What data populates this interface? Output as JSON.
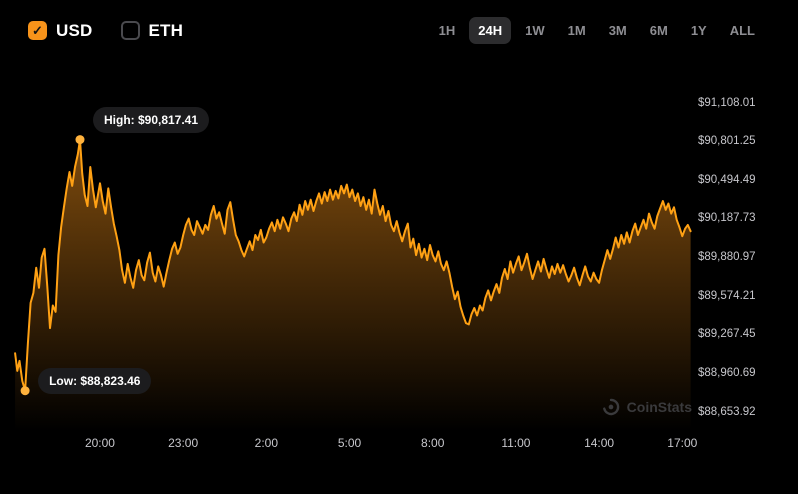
{
  "toggles": {
    "usd": {
      "label": "USD",
      "checked": true,
      "check_glyph": "✓"
    },
    "eth": {
      "label": "ETH",
      "checked": false
    }
  },
  "ranges": {
    "items": [
      "1H",
      "24H",
      "1W",
      "1M",
      "3M",
      "6M",
      "1Y",
      "ALL"
    ],
    "active": "24H"
  },
  "watermark": {
    "text": "CoinStats"
  },
  "colors": {
    "panel_bg": "#000000",
    "accent": "#f7931a",
    "line": "#ffa114",
    "dot": "#ffb23d",
    "fill_top": "rgba(247,147,26,0.58)",
    "fill_bottom": "rgba(247,147,26,0)",
    "badge_bg": "#1c1c1e",
    "active_range_bg": "#2c2c2e",
    "axis_text": "#c7c7cc",
    "muted_text": "#8e8e93"
  },
  "chart_data": {
    "type": "area",
    "legend": "none",
    "grid": false,
    "y_ticks": [
      {
        "label": "$91,108.01",
        "value": 91108.01
      },
      {
        "label": "$90,801.25",
        "value": 90801.25
      },
      {
        "label": "$90,494.49",
        "value": 90494.49
      },
      {
        "label": "$90,187.73",
        "value": 90187.73
      },
      {
        "label": "$89,880.97",
        "value": 89880.97
      },
      {
        "label": "$89,574.21",
        "value": 89574.21
      },
      {
        "label": "$89,267.45",
        "value": 89267.45
      },
      {
        "label": "$88,960.69",
        "value": 88960.69
      },
      {
        "label": "$88,653.92",
        "value": 88653.92
      }
    ],
    "x_ticks": [
      {
        "label": "20:00",
        "hour": 20
      },
      {
        "label": "23:00",
        "hour": 23
      },
      {
        "label": "2:00",
        "hour": 26
      },
      {
        "label": "5:00",
        "hour": 29
      },
      {
        "label": "8:00",
        "hour": 32
      },
      {
        "label": "11:00",
        "hour": 35
      },
      {
        "label": "14:00",
        "hour": 38
      },
      {
        "label": "17:00",
        "hour": 41
      }
    ],
    "time_domain": [
      16.9,
      41.35
    ],
    "high": {
      "label": "High: $90,817.41",
      "value": 90817.41,
      "hour": 19.28
    },
    "low": {
      "label": "Low: $88,823.46",
      "value": 88823.46,
      "hour": 17.3
    },
    "points": [
      [
        16.94,
        89120
      ],
      [
        17.02,
        88980
      ],
      [
        17.1,
        89060
      ],
      [
        17.2,
        88900
      ],
      [
        17.3,
        88823.46
      ],
      [
        17.4,
        89200
      ],
      [
        17.5,
        89520
      ],
      [
        17.6,
        89600
      ],
      [
        17.7,
        89800
      ],
      [
        17.8,
        89640
      ],
      [
        17.9,
        89880
      ],
      [
        18.0,
        89950
      ],
      [
        18.1,
        89650
      ],
      [
        18.2,
        89320
      ],
      [
        18.3,
        89500
      ],
      [
        18.4,
        89450
      ],
      [
        18.5,
        89900
      ],
      [
        18.6,
        90120
      ],
      [
        18.7,
        90280
      ],
      [
        18.8,
        90430
      ],
      [
        18.9,
        90560
      ],
      [
        19.0,
        90450
      ],
      [
        19.1,
        90600
      ],
      [
        19.2,
        90700
      ],
      [
        19.28,
        90817.41
      ],
      [
        19.36,
        90550
      ],
      [
        19.45,
        90380
      ],
      [
        19.55,
        90290
      ],
      [
        19.65,
        90600
      ],
      [
        19.75,
        90420
      ],
      [
        19.85,
        90280
      ],
      [
        20.0,
        90470
      ],
      [
        20.1,
        90330
      ],
      [
        20.2,
        90230
      ],
      [
        20.3,
        90430
      ],
      [
        20.4,
        90280
      ],
      [
        20.5,
        90150
      ],
      [
        20.6,
        90050
      ],
      [
        20.7,
        89940
      ],
      [
        20.8,
        89780
      ],
      [
        20.9,
        89680
      ],
      [
        21.0,
        89830
      ],
      [
        21.1,
        89720
      ],
      [
        21.2,
        89640
      ],
      [
        21.3,
        89780
      ],
      [
        21.4,
        89860
      ],
      [
        21.5,
        89740
      ],
      [
        21.6,
        89700
      ],
      [
        21.7,
        89840
      ],
      [
        21.8,
        89920
      ],
      [
        21.9,
        89760
      ],
      [
        22.0,
        89690
      ],
      [
        22.1,
        89810
      ],
      [
        22.2,
        89740
      ],
      [
        22.3,
        89650
      ],
      [
        22.4,
        89760
      ],
      [
        22.5,
        89860
      ],
      [
        22.6,
        89950
      ],
      [
        22.7,
        90000
      ],
      [
        22.8,
        89910
      ],
      [
        22.9,
        89960
      ],
      [
        23.0,
        90060
      ],
      [
        23.1,
        90140
      ],
      [
        23.2,
        90190
      ],
      [
        23.3,
        90100
      ],
      [
        23.4,
        90060
      ],
      [
        23.5,
        90170
      ],
      [
        23.6,
        90120
      ],
      [
        23.7,
        90070
      ],
      [
        23.8,
        90140
      ],
      [
        23.9,
        90100
      ],
      [
        24.0,
        90220
      ],
      [
        24.1,
        90290
      ],
      [
        24.2,
        90190
      ],
      [
        24.3,
        90240
      ],
      [
        24.4,
        90150
      ],
      [
        24.5,
        90070
      ],
      [
        24.6,
        90260
      ],
      [
        24.7,
        90320
      ],
      [
        24.8,
        90180
      ],
      [
        24.9,
        90060
      ],
      [
        25.0,
        90010
      ],
      [
        25.1,
        89940
      ],
      [
        25.2,
        89890
      ],
      [
        25.3,
        89950
      ],
      [
        25.4,
        90010
      ],
      [
        25.5,
        89940
      ],
      [
        25.6,
        90060
      ],
      [
        25.7,
        90020
      ],
      [
        25.8,
        90100
      ],
      [
        25.9,
        90000
      ],
      [
        26.0,
        90040
      ],
      [
        26.1,
        90110
      ],
      [
        26.2,
        90160
      ],
      [
        26.3,
        90090
      ],
      [
        26.4,
        90180
      ],
      [
        26.5,
        90110
      ],
      [
        26.6,
        90200
      ],
      [
        26.7,
        90150
      ],
      [
        26.8,
        90090
      ],
      [
        26.9,
        90190
      ],
      [
        27.0,
        90240
      ],
      [
        27.1,
        90170
      ],
      [
        27.2,
        90300
      ],
      [
        27.3,
        90220
      ],
      [
        27.4,
        90330
      ],
      [
        27.5,
        90260
      ],
      [
        27.6,
        90340
      ],
      [
        27.7,
        90250
      ],
      [
        27.8,
        90330
      ],
      [
        27.9,
        90390
      ],
      [
        28.0,
        90310
      ],
      [
        28.1,
        90400
      ],
      [
        28.2,
        90330
      ],
      [
        28.3,
        90420
      ],
      [
        28.4,
        90340
      ],
      [
        28.5,
        90410
      ],
      [
        28.6,
        90350
      ],
      [
        28.7,
        90450
      ],
      [
        28.8,
        90390
      ],
      [
        28.9,
        90460
      ],
      [
        29.0,
        90360
      ],
      [
        29.1,
        90420
      ],
      [
        29.2,
        90330
      ],
      [
        29.3,
        90390
      ],
      [
        29.4,
        90290
      ],
      [
        29.5,
        90360
      ],
      [
        29.6,
        90260
      ],
      [
        29.7,
        90340
      ],
      [
        29.8,
        90230
      ],
      [
        29.9,
        90420
      ],
      [
        30.0,
        90310
      ],
      [
        30.1,
        90220
      ],
      [
        30.2,
        90290
      ],
      [
        30.3,
        90170
      ],
      [
        30.4,
        90250
      ],
      [
        30.5,
        90140
      ],
      [
        30.6,
        90090
      ],
      [
        30.7,
        90170
      ],
      [
        30.8,
        90080
      ],
      [
        30.9,
        90010
      ],
      [
        31.0,
        90090
      ],
      [
        31.1,
        90150
      ],
      [
        31.2,
        89960
      ],
      [
        31.3,
        90030
      ],
      [
        31.4,
        89900
      ],
      [
        31.5,
        89990
      ],
      [
        31.6,
        89880
      ],
      [
        31.7,
        89950
      ],
      [
        31.8,
        89860
      ],
      [
        31.9,
        89980
      ],
      [
        32.0,
        89900
      ],
      [
        32.1,
        89850
      ],
      [
        32.2,
        89930
      ],
      [
        32.3,
        89830
      ],
      [
        32.4,
        89780
      ],
      [
        32.5,
        89850
      ],
      [
        32.6,
        89760
      ],
      [
        32.7,
        89650
      ],
      [
        32.8,
        89550
      ],
      [
        32.9,
        89610
      ],
      [
        33.0,
        89490
      ],
      [
        33.1,
        89420
      ],
      [
        33.2,
        89360
      ],
      [
        33.3,
        89350
      ],
      [
        33.4,
        89430
      ],
      [
        33.5,
        89480
      ],
      [
        33.6,
        89420
      ],
      [
        33.7,
        89500
      ],
      [
        33.8,
        89460
      ],
      [
        33.9,
        89560
      ],
      [
        34.0,
        89620
      ],
      [
        34.1,
        89540
      ],
      [
        34.2,
        89610
      ],
      [
        34.3,
        89670
      ],
      [
        34.4,
        89600
      ],
      [
        34.5,
        89720
      ],
      [
        34.6,
        89790
      ],
      [
        34.7,
        89710
      ],
      [
        34.8,
        89850
      ],
      [
        34.9,
        89760
      ],
      [
        35.0,
        89830
      ],
      [
        35.1,
        89890
      ],
      [
        35.2,
        89780
      ],
      [
        35.3,
        89840
      ],
      [
        35.4,
        89910
      ],
      [
        35.5,
        89800
      ],
      [
        35.6,
        89710
      ],
      [
        35.7,
        89780
      ],
      [
        35.8,
        89850
      ],
      [
        35.9,
        89770
      ],
      [
        36.0,
        89870
      ],
      [
        36.1,
        89790
      ],
      [
        36.2,
        89720
      ],
      [
        36.3,
        89810
      ],
      [
        36.4,
        89750
      ],
      [
        36.5,
        89830
      ],
      [
        36.6,
        89760
      ],
      [
        36.7,
        89820
      ],
      [
        36.8,
        89750
      ],
      [
        36.9,
        89690
      ],
      [
        37.0,
        89740
      ],
      [
        37.1,
        89800
      ],
      [
        37.2,
        89720
      ],
      [
        37.3,
        89660
      ],
      [
        37.4,
        89740
      ],
      [
        37.5,
        89810
      ],
      [
        37.6,
        89730
      ],
      [
        37.7,
        89690
      ],
      [
        37.8,
        89760
      ],
      [
        37.9,
        89710
      ],
      [
        38.0,
        89680
      ],
      [
        38.1,
        89780
      ],
      [
        38.2,
        89860
      ],
      [
        38.3,
        89940
      ],
      [
        38.4,
        89870
      ],
      [
        38.5,
        89950
      ],
      [
        38.6,
        90040
      ],
      [
        38.7,
        89960
      ],
      [
        38.8,
        90060
      ],
      [
        38.9,
        89990
      ],
      [
        39.0,
        90080
      ],
      [
        39.1,
        90000
      ],
      [
        39.2,
        90090
      ],
      [
        39.3,
        90150
      ],
      [
        39.4,
        90060
      ],
      [
        39.5,
        90120
      ],
      [
        39.6,
        90180
      ],
      [
        39.7,
        90110
      ],
      [
        39.8,
        90230
      ],
      [
        39.9,
        90160
      ],
      [
        40.0,
        90110
      ],
      [
        40.1,
        90210
      ],
      [
        40.2,
        90270
      ],
      [
        40.3,
        90330
      ],
      [
        40.4,
        90260
      ],
      [
        40.5,
        90310
      ],
      [
        40.6,
        90230
      ],
      [
        40.7,
        90280
      ],
      [
        40.8,
        90180
      ],
      [
        40.9,
        90120
      ],
      [
        41.0,
        90050
      ],
      [
        41.1,
        90110
      ],
      [
        41.2,
        90140
      ],
      [
        41.3,
        90090
      ]
    ]
  }
}
